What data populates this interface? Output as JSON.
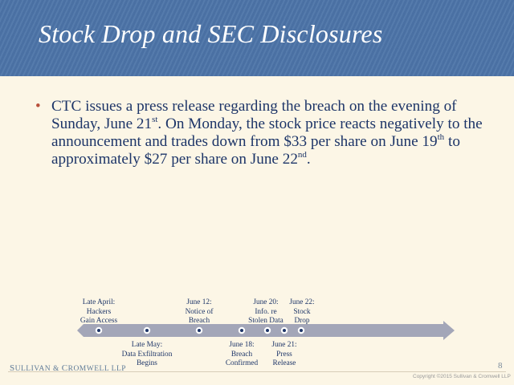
{
  "slide": {
    "title": "Stock Drop and SEC Disclosures",
    "bullet": {
      "marker": "•",
      "parts": [
        "CTC issues a press release regarding the breach on the evening of Sunday, June 21",
        "st",
        ".  On Monday, the stock price reacts negatively to the announcement and trades down from $33 per share on June 19",
        "th",
        " to approximately $27 per share on June 22",
        "nd",
        "."
      ]
    }
  },
  "timeline": {
    "colors": {
      "arrow": "#a3a6b8",
      "dot_fill": "#ffffff",
      "dot_center": "#1d3568",
      "text": "#1d3568"
    },
    "above": [
      {
        "id": "late-april",
        "lines": [
          "Late April:",
          "Hackers",
          "Gain Access"
        ]
      },
      {
        "id": "june-12",
        "lines": [
          "June 12:",
          "Notice of",
          "Breach"
        ]
      },
      {
        "id": "june-20",
        "lines": [
          "June 20:",
          "Info. re",
          "Stolen Data"
        ]
      },
      {
        "id": "june-22",
        "lines": [
          "June 22:",
          "Stock",
          "Drop"
        ]
      }
    ],
    "below": [
      {
        "id": "late-may",
        "lines": [
          "Late May:",
          "Data Exfiltration",
          "Begins"
        ]
      },
      {
        "id": "june-18",
        "lines": [
          "June 18:",
          "Breach",
          "Confirmed"
        ]
      },
      {
        "id": "june-21",
        "lines": [
          "June 21:",
          "Press",
          "Release"
        ]
      }
    ]
  },
  "footer": {
    "logo_first": "S",
    "logo_rest": "ULLIVAN",
    "logo_amp": " & ",
    "logo_first2": "C",
    "logo_rest2": "ROMWELL LLP",
    "page_number": "8",
    "copyright": "Copyright ©2015  Sullivan & Cromwell LLP"
  }
}
